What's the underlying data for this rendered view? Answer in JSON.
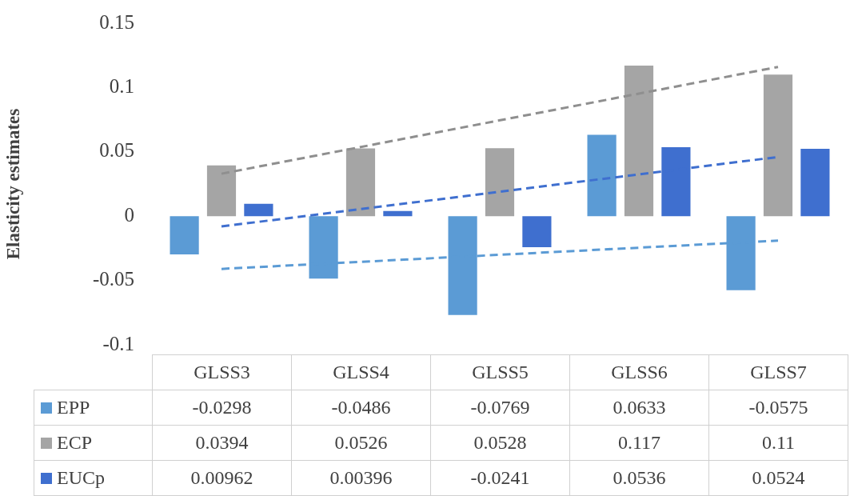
{
  "chart_data": {
    "type": "bar",
    "ylabel": "Elasticity estimates",
    "categories": [
      "GLSS3",
      "GLSS4",
      "GLSS5",
      "GLSS6",
      "GLSS7"
    ],
    "series": [
      {
        "name": "EPP",
        "color": "#5b9bd5",
        "values": [
          -0.0298,
          -0.0486,
          -0.0769,
          0.0633,
          -0.0575
        ],
        "value_labels": [
          "-0.0298",
          "-0.0486",
          "-0.0769",
          "0.0633",
          "-0.0575"
        ]
      },
      {
        "name": "ECP",
        "color": "#a5a5a5",
        "values": [
          0.0394,
          0.0526,
          0.0528,
          0.117,
          0.11
        ],
        "value_labels": [
          "0.0394",
          "0.0526",
          "0.0528",
          "0.117",
          "0.11"
        ]
      },
      {
        "name": "EUCp",
        "color": "#3f6fcf",
        "values": [
          0.00962,
          0.00396,
          -0.0241,
          0.0536,
          0.0524
        ],
        "value_labels": [
          "0.00962",
          "0.00396",
          "-0.0241",
          "0.0536",
          "0.0524"
        ]
      },
      {
        "type": "line",
        "color": "#5b9bd5",
        "x": [
          "GLSS3",
          "GLSS7"
        ],
        "values": [
          -0.041,
          -0.019
        ],
        "line_style": "dashed",
        "marker": "none"
      },
      {
        "type": "line",
        "color": "#8f8f8f",
        "x": [
          "GLSS3",
          "GLSS7"
        ],
        "values": [
          0.033,
          0.116
        ],
        "line_style": "dashed",
        "marker": "none"
      },
      {
        "type": "line",
        "color": "#3f6fcf",
        "x": [
          "GLSS3",
          "GLSS7"
        ],
        "values": [
          -0.008,
          0.046
        ],
        "line_style": "dashed",
        "marker": "none"
      }
    ],
    "ylim": [
      -0.1,
      0.15
    ],
    "yticks": [
      -0.1,
      -0.05,
      0,
      0.05,
      0.1,
      0.15
    ],
    "legend": "bottom"
  }
}
